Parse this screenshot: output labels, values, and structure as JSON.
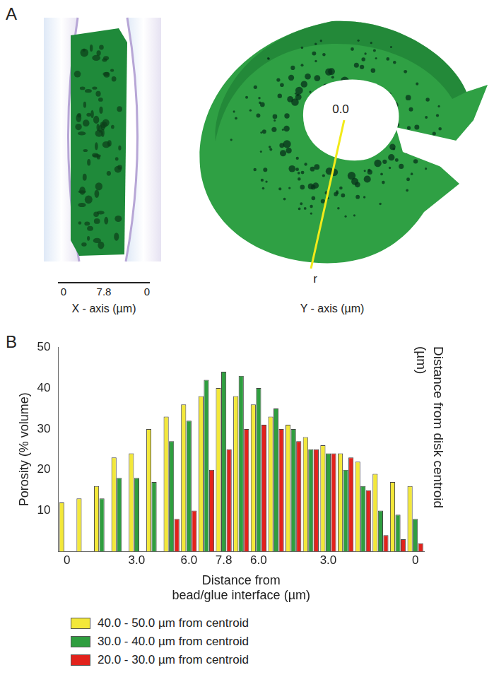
{
  "panel_a": {
    "label": "A",
    "left_image": {
      "axis_ticks": [
        "0",
        "7.8",
        "0"
      ],
      "axis_label": "X - axis (µm)"
    },
    "right_image": {
      "center_label": "0.0",
      "radius_label": "r",
      "axis_label": "Y - axis (µm)"
    }
  },
  "chart_data": {
    "type": "bar",
    "panel_label": "B",
    "x_label": [
      "Distance from",
      "bead/glue interface (µm)"
    ],
    "y_label": "Porosity (% volume)",
    "depth_label": "Distance from disk centroid (µm)",
    "categories": [
      "0",
      null,
      null,
      null,
      "3.0",
      null,
      null,
      "6.0",
      null,
      "7.8",
      null,
      "6.0",
      null,
      null,
      null,
      "3.0",
      null,
      null,
      null,
      null,
      "0"
    ],
    "series": [
      {
        "name": "40.0 - 50.0 µm from centroid",
        "color": "#f3e83a",
        "values": [
          12,
          13,
          16,
          23,
          24,
          30,
          33,
          36,
          38,
          40,
          38,
          36,
          33,
          31,
          28,
          26,
          24,
          22,
          19,
          17,
          16
        ]
      },
      {
        "name": "30.0 - 40.0 µm from centroid",
        "color": "#2f9e3f",
        "values": [
          null,
          null,
          13,
          18,
          18,
          17,
          27,
          32,
          42,
          44,
          43,
          40,
          35,
          30,
          25,
          24,
          20,
          16,
          10,
          9,
          8
        ]
      },
      {
        "name": "20.0 - 30.0 µm from centroid",
        "color": "#e2221c",
        "values": [
          null,
          null,
          null,
          null,
          null,
          null,
          8,
          10,
          20,
          25,
          30,
          31,
          30,
          27,
          25,
          24,
          23,
          15,
          4,
          3,
          2
        ]
      }
    ],
    "ylim": [
      0,
      50
    ],
    "yticks": [
      10,
      20,
      30,
      40,
      50
    ],
    "grid": false,
    "legend": "bottom"
  }
}
